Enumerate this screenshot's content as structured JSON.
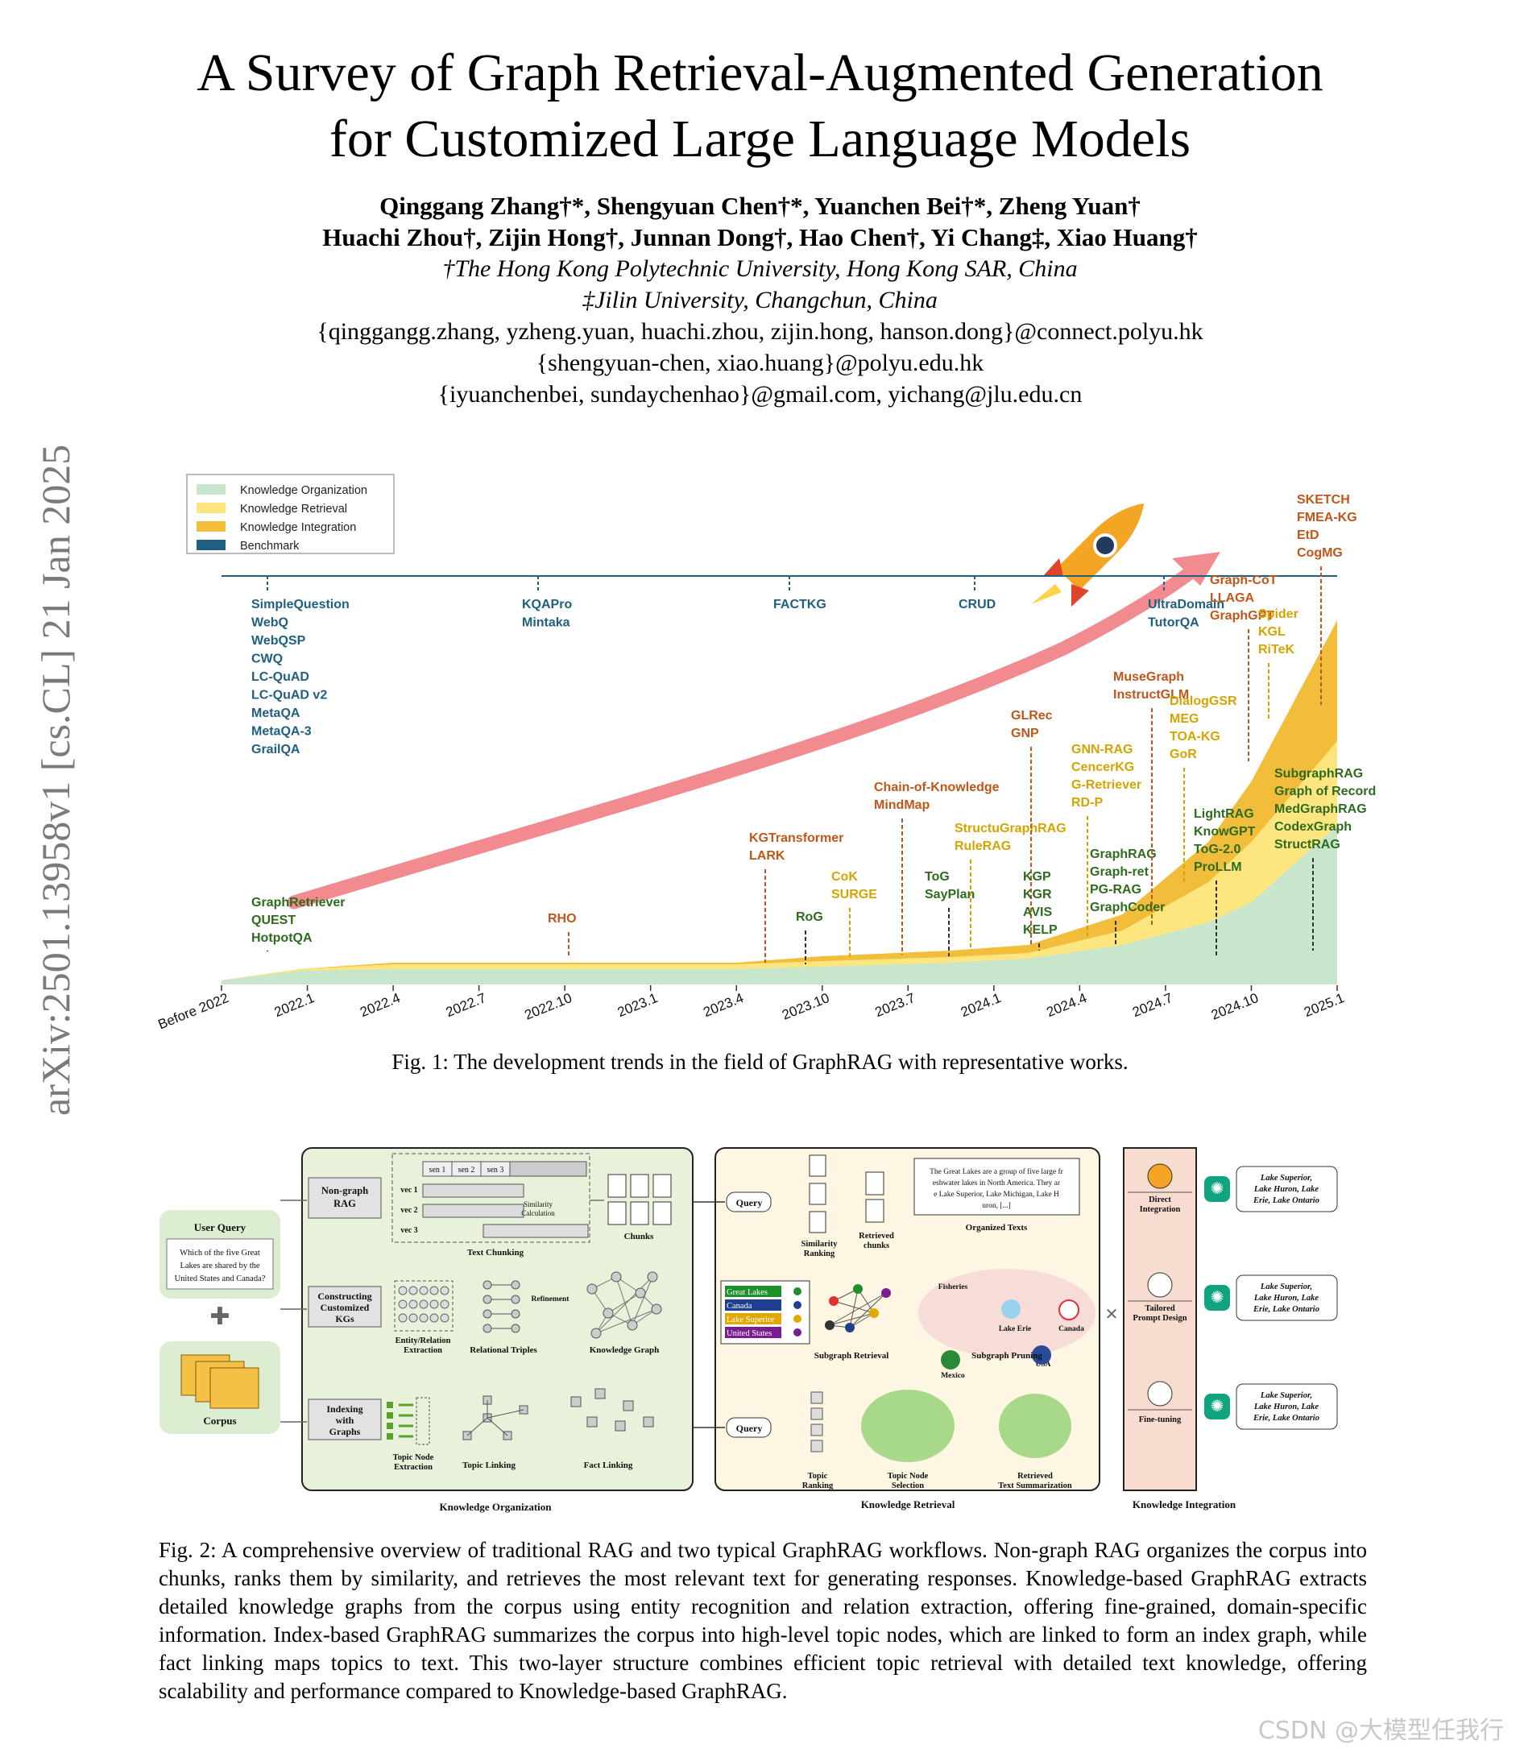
{
  "title_line1": "A Survey of Graph Retrieval-Augmented Generation",
  "title_line2": "for Customized Large Language Models",
  "authors_line1": "Qinggang Zhang†*, Shengyuan Chen†*, Yuanchen Bei†*, Zheng Yuan†",
  "authors_line2": "Huachi Zhou†, Zijin Hong†, Junnan Dong†, Hao Chen†, Yi Chang‡, Xiao Huang†",
  "affiliation1": "†The Hong Kong Polytechnic University, Hong Kong SAR, China",
  "affiliation2": "‡Jilin University, Changchun, China",
  "email1": "{qinggangg.zhang, yzheng.yuan, huachi.zhou, zijin.hong, hanson.dong}@connect.polyu.hk",
  "email2": "{shengyuan-chen, xiao.huang}@polyu.edu.hk",
  "email3": "{iyuanchenbei, sundaychenhao}@gmail.com, yichang@jlu.edu.cn",
  "arxiv_id": "arXiv:2501.13958v1  [cs.CL]  21 Jan 2025",
  "fig1_caption": "Fig. 1: The development trends in the field of GraphRAG with representative works.",
  "fig2_caption": "Fig. 2: A comprehensive overview of traditional RAG and two typical GraphRAG workflows. Non-graph RAG organizes the corpus into chunks, ranks them by similarity, and retrieves the most relevant text for generating responses. Knowledge-based GraphRAG extracts detailed knowledge graphs from the corpus using entity recognition and relation extraction, offering fine-grained, domain-specific information. Index-based GraphRAG summarizes the corpus into high-level topic nodes, which are linked to form an index graph, while fact linking maps topics to text. This two-layer structure combines efficient topic retrieval with detailed text knowledge, offering scalability and performance compared to Knowledge-based GraphRAG.",
  "watermark": "CSDN @大模型任我行",
  "colors": {
    "organization": "#c8e6cc",
    "retrieval": "#fde680",
    "integration": "#f2bd3a",
    "benchmark": "#1f5f7f",
    "arrow": "#f28b8f",
    "org_text": "#2e6b1e",
    "ret_text": "#d4a500",
    "int_text": "#c0561a"
  },
  "chart_data": {
    "type": "area",
    "legend": [
      "Knowledge Organization",
      "Knowledge Retrieval",
      "Knowledge Integration",
      "Benchmark"
    ],
    "legend_position": "top-left",
    "x_ticks": [
      "Before 2022",
      "2022.1",
      "2022.4",
      "2022.7",
      "2022.10",
      "2023.1",
      "2023.4",
      "2023.10",
      "2023.7",
      "2024.1",
      "2024.4",
      "2024.7",
      "2024.10",
      "2025.1"
    ],
    "benchmarks": [
      {
        "x": "2022.1",
        "labels": [
          "SimpleQuestion",
          "WebQ",
          "WebQSP",
          "CWQ",
          "LC-QuAD",
          "LC-QuAD v2",
          "MetaQA",
          "MetaQA-3",
          "GrailQA"
        ]
      },
      {
        "x": "2022.10",
        "labels": [
          "KQAPro",
          "Mintaka"
        ]
      },
      {
        "x": "2023.4",
        "labels": [
          "FACTKG"
        ]
      },
      {
        "x": "2024.1",
        "labels": [
          "CRUD"
        ]
      },
      {
        "x": "2024.7",
        "labels": [
          "UltraDomain",
          "TutorQA"
        ]
      }
    ],
    "works": [
      {
        "category": "organization",
        "labels": [
          "GraphRetriever",
          "QUEST",
          "HotpotQA"
        ]
      },
      {
        "category": "integration",
        "labels": [
          "RHO"
        ]
      },
      {
        "category": "integration",
        "labels": [
          "KGTransformer",
          "LARK"
        ]
      },
      {
        "category": "organization",
        "labels": [
          "RoG"
        ]
      },
      {
        "category": "retrieval",
        "labels": [
          "CoK",
          "SURGE"
        ]
      },
      {
        "category": "integration",
        "labels": [
          "Chain-of-Knowledge",
          "MindMap"
        ]
      },
      {
        "category": "organization",
        "labels": [
          "ToG",
          "SayPlan"
        ]
      },
      {
        "category": "retrieval",
        "labels": [
          "StructuGraphRAG",
          "RuleRAG"
        ]
      },
      {
        "category": "integration",
        "labels": [
          "GLRec",
          "GNP"
        ]
      },
      {
        "category": "organization",
        "labels": [
          "KGP",
          "KGR",
          "AVIS",
          "KELP"
        ]
      },
      {
        "category": "retrieval",
        "labels": [
          "GNN-RAG",
          "CencerKG",
          "G-Retriever",
          "RD-P"
        ]
      },
      {
        "category": "organization",
        "labels": [
          "GraphRAG",
          "Graph-ret",
          "PG-RAG",
          "GraphCoder"
        ]
      },
      {
        "category": "integration",
        "labels": [
          "MuseGraph",
          "InstructGLM"
        ]
      },
      {
        "category": "retrieval",
        "labels": [
          "DialogGSR",
          "MEG",
          "TOA-KG",
          "GoR"
        ]
      },
      {
        "category": "organization",
        "labels": [
          "LightRAG",
          "KnowGPT",
          "ToG-2.0",
          "ProLLM"
        ]
      },
      {
        "category": "integration",
        "labels": [
          "Graph-CoT",
          "LLAGA",
          "GraphGPT"
        ]
      },
      {
        "category": "retrieval",
        "labels": [
          "Spider",
          "KGL",
          "RiTeK"
        ]
      },
      {
        "category": "integration",
        "labels": [
          "SKETCH",
          "FMEA-KG",
          "EtD",
          "CogMG"
        ]
      },
      {
        "category": "organization",
        "labels": [
          "SubgraphRAG",
          "Graph of Record",
          "MedGraphRAG",
          "CodexGraph",
          "StructRAG"
        ]
      }
    ]
  },
  "fig2": {
    "user_query_title": "User Query",
    "user_query_text": "Which of the five Great Lakes are shared by the United States and Canada?",
    "corpus": "Corpus",
    "rows": [
      "Non-graph RAG",
      "Constructing Customized KGs",
      "Indexing with Graphs"
    ],
    "org_labels": [
      "Text Chunking",
      "Chunks",
      "Entity/Relation Extraction",
      "Relational Triples",
      "Refinement",
      "Knowledge Graph",
      "Topic Node Extraction",
      "Topic Linking",
      "Fact Linking"
    ],
    "sim_calc": "Similarity Calculation",
    "vec_labels": [
      "vec 1",
      "vec 2",
      "vec 3"
    ],
    "sen_labels": [
      "sen 1",
      "sen 2",
      "sen 3"
    ],
    "ret_labels": [
      "Query",
      "Similarity Ranking",
      "Retrieved chunks",
      "Organized Texts",
      "Subgraph Retrieval",
      "Subgraph Pruning",
      "Topic Ranking",
      "Topic Node Selection",
      "Retrieved Text Summarization"
    ],
    "organized_text": "The Great Lakes are a group of five large freshwater lakes in North America. They are Lake Superior, Lake Michigan, Lake Huron, [...]",
    "entities": [
      "Great Lakes",
      "Canada",
      "Lake Superior",
      "United States"
    ],
    "prune_labels": [
      "Fisheries",
      "Lake Erie",
      "Canada",
      "Mexico",
      "USA"
    ],
    "int_labels": [
      "Direct Integration",
      "Tailored Prompt Design",
      "Fine-tuning"
    ],
    "answer": "Lake Superior, Lake Huron, Lake Erie, Lake Ontario",
    "section_labels": [
      "Knowledge Organization",
      "Knowledge Retrieval",
      "Knowledge Integration"
    ]
  }
}
